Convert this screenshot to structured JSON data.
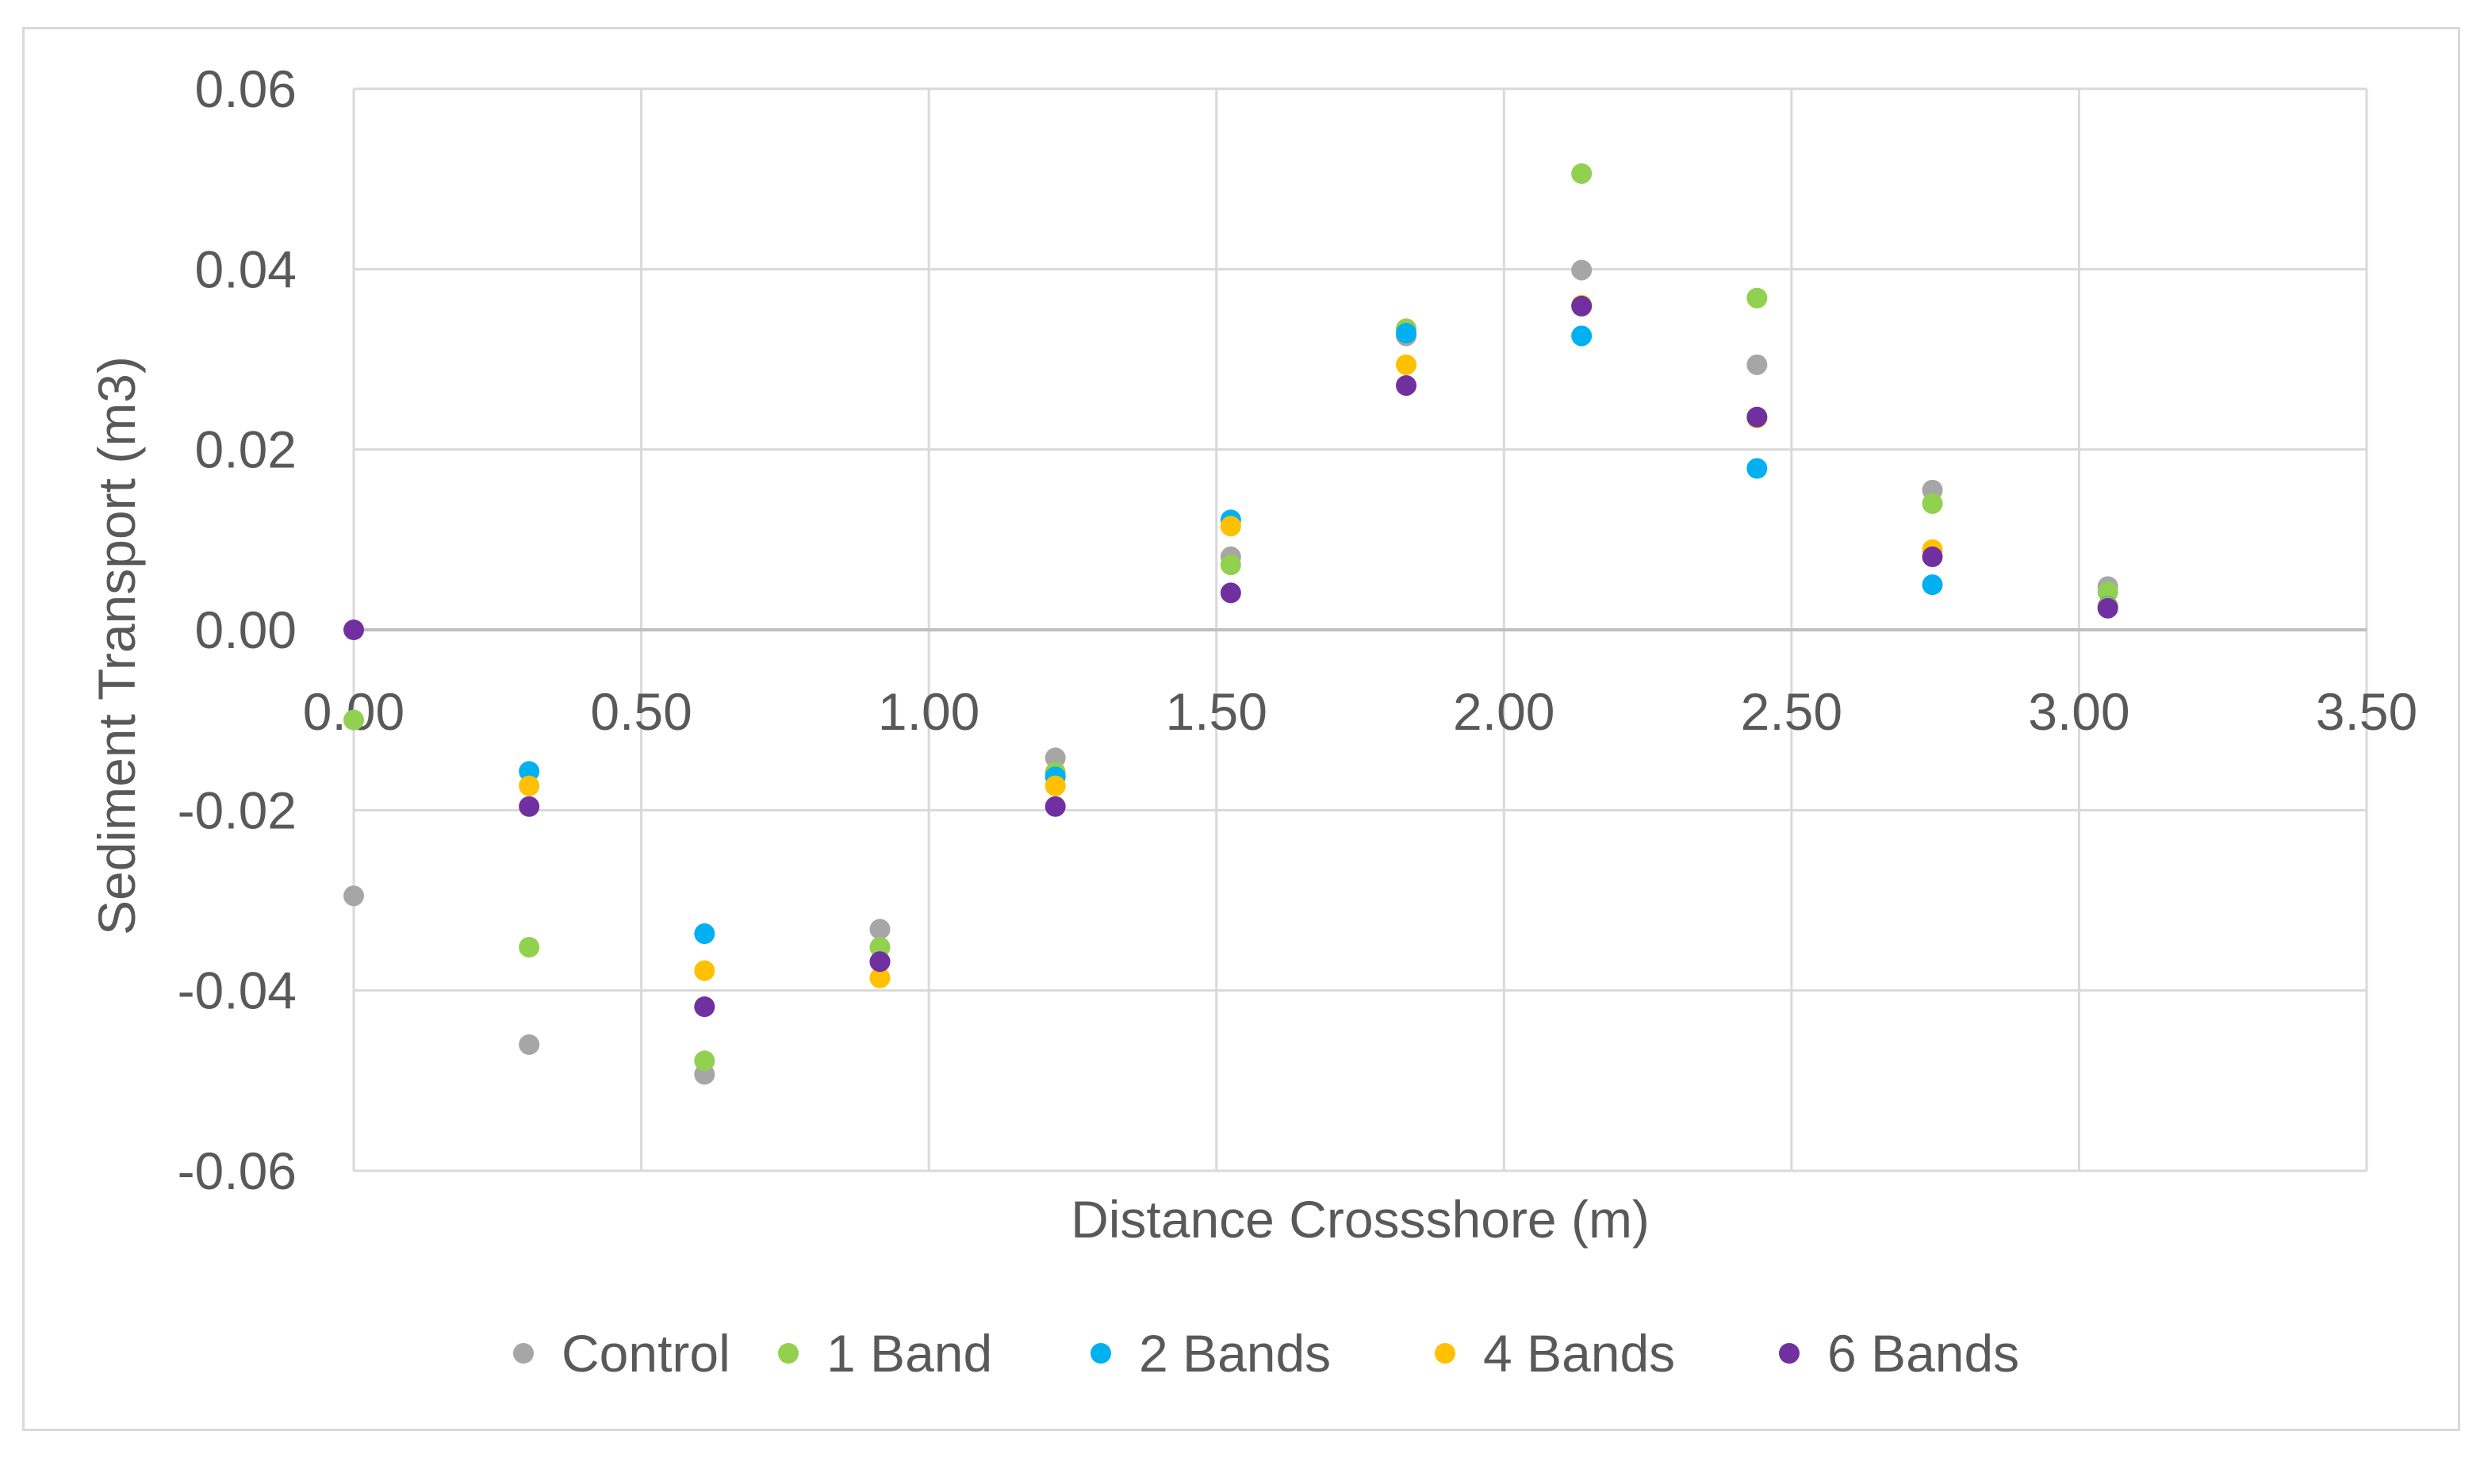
{
  "chart_data": {
    "type": "scatter",
    "title": "",
    "xlabel": "Distance Crossshore (m)",
    "ylabel": "Sediment Transport (m3)",
    "xlim": [
      0,
      3.5
    ],
    "ylim": [
      -0.06,
      0.06
    ],
    "x_ticks": [
      "0.00",
      "0.50",
      "1.00",
      "1.50",
      "2.00",
      "2.50",
      "3.00",
      "3.50"
    ],
    "y_ticks": [
      "0.06",
      "0.04",
      "0.02",
      "0.00",
      "-0.02",
      "-0.04",
      "-0.06"
    ],
    "grid": true,
    "legend_position": "bottom",
    "series": [
      {
        "name": "Control",
        "color": "#a6a6a6",
        "points": [
          [
            0.0,
            -0.0295
          ],
          [
            0.305,
            -0.046
          ],
          [
            0.61,
            -0.0493
          ],
          [
            0.915,
            -0.0332
          ],
          [
            1.22,
            -0.0142
          ],
          [
            1.525,
            0.0081
          ],
          [
            1.83,
            0.0326
          ],
          [
            2.135,
            0.0399
          ],
          [
            2.44,
            0.0294
          ],
          [
            2.745,
            0.0155
          ],
          [
            3.05,
            0.0048
          ]
        ]
      },
      {
        "name": "1 Band",
        "color": "#92d050",
        "points": [
          [
            0.0,
            -0.01
          ],
          [
            0.305,
            -0.0352
          ],
          [
            0.61,
            -0.0478
          ],
          [
            0.915,
            -0.0352
          ],
          [
            1.22,
            -0.0158
          ],
          [
            1.525,
            0.0072
          ],
          [
            1.83,
            0.0334
          ],
          [
            2.135,
            0.0506
          ],
          [
            2.44,
            0.0368
          ],
          [
            2.745,
            0.014
          ],
          [
            3.05,
            0.0042
          ]
        ]
      },
      {
        "name": "2 Bands",
        "color": "#00b0f0",
        "points": [
          [
            0.305,
            -0.0157
          ],
          [
            0.61,
            -0.0337
          ],
          [
            0.915,
            -0.0368
          ],
          [
            1.22,
            -0.0163
          ],
          [
            1.525,
            0.0122
          ],
          [
            1.83,
            0.0329
          ],
          [
            2.135,
            0.0326
          ],
          [
            2.44,
            0.0179
          ],
          [
            2.745,
            0.005
          ],
          [
            3.05,
            0.0026
          ]
        ]
      },
      {
        "name": "4 Bands",
        "color": "#ffc000",
        "points": [
          [
            0.305,
            -0.0173
          ],
          [
            0.61,
            -0.0378
          ],
          [
            0.915,
            -0.0386
          ],
          [
            1.22,
            -0.0173
          ],
          [
            1.525,
            0.0115
          ],
          [
            1.83,
            0.0294
          ],
          [
            2.135,
            0.036
          ],
          [
            2.44,
            0.0235
          ],
          [
            2.745,
            0.0089
          ],
          [
            3.05,
            0.0025
          ]
        ]
      },
      {
        "name": "6 Bands",
        "color": "#7030a0",
        "points": [
          [
            0.0,
            0.0
          ],
          [
            0.305,
            -0.0196
          ],
          [
            0.61,
            -0.0418
          ],
          [
            0.915,
            -0.0368
          ],
          [
            1.22,
            -0.0196
          ],
          [
            1.525,
            0.0041
          ],
          [
            1.83,
            0.0271
          ],
          [
            2.135,
            0.0359
          ],
          [
            2.44,
            0.0236
          ],
          [
            2.745,
            0.0081
          ],
          [
            3.05,
            0.0024
          ]
        ]
      }
    ]
  }
}
